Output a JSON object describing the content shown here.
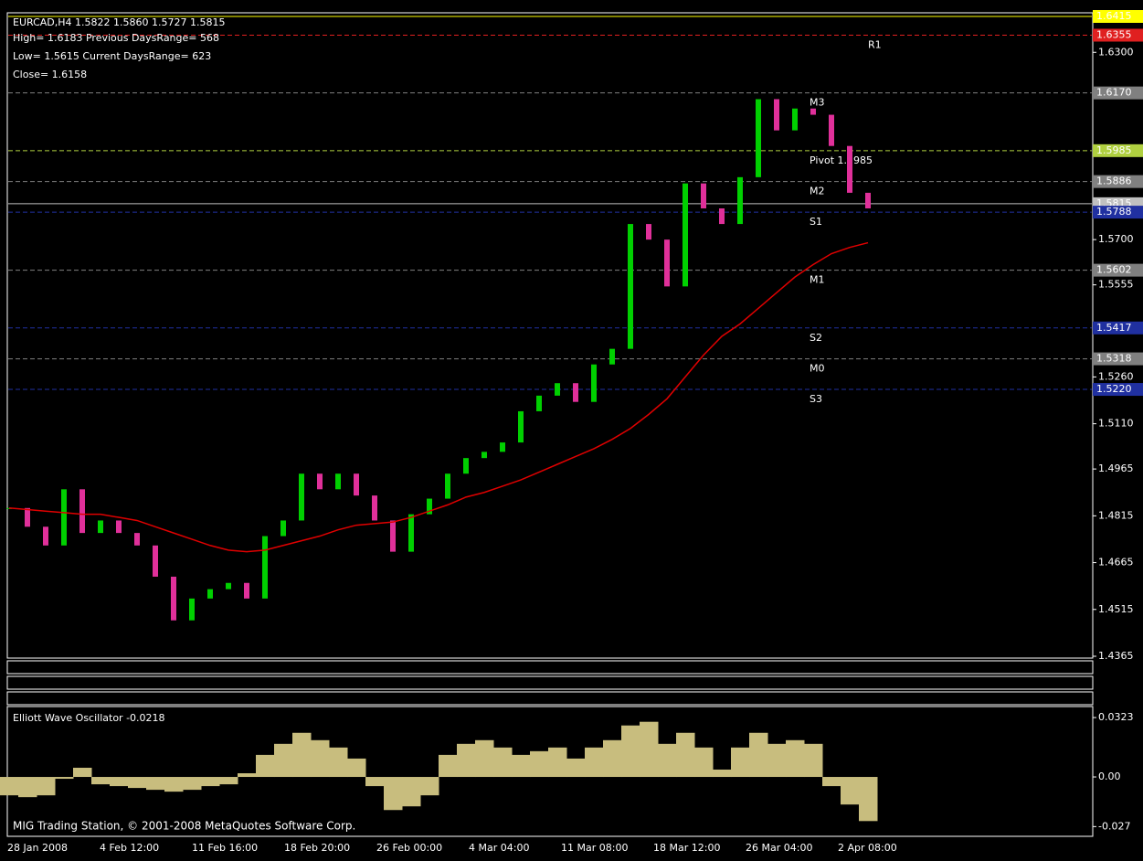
{
  "chart_data": [
    {
      "type": "candlestick",
      "header": [
        "EURCAD,H4  1.5822 1.5860 1.5727 1.5815",
        "High= 1.6183 Previous DaysRange= 568",
        "Low= 1.5615 Current DaysRange= 623",
        "Close= 1.6158"
      ],
      "x_labels": [
        "28 Jan 2008",
        "4 Feb 12:00",
        "11 Feb 16:00",
        "18 Feb 20:00",
        "26 Feb 00:00",
        "4 Mar 04:00",
        "11 Mar 08:00",
        "18 Mar 12:00",
        "26 Mar 04:00",
        "2 Apr 08:00"
      ],
      "values": [
        1.484,
        1.478,
        1.472,
        1.49,
        1.476,
        1.48,
        1.476,
        1.472,
        1.462,
        1.448,
        1.455,
        1.458,
        1.46,
        1.455,
        1.475,
        1.48,
        1.495,
        1.49,
        1.495,
        1.488,
        1.48,
        1.47,
        1.482,
        1.487,
        1.495,
        1.5,
        1.502,
        1.505,
        1.515,
        1.52,
        1.524,
        1.518,
        1.53,
        1.535,
        1.575,
        1.57,
        1.555,
        1.588,
        1.58,
        1.575,
        1.59,
        1.615,
        1.605,
        1.612,
        1.61,
        1.6,
        1.585,
        1.58
      ],
      "up_color": "#00d000",
      "down_color": "#e0309a",
      "ma_values": [
        1.484,
        1.4835,
        1.483,
        1.4825,
        1.482,
        1.482,
        1.481,
        1.48,
        1.478,
        1.476,
        1.474,
        1.472,
        1.4705,
        1.47,
        1.4705,
        1.472,
        1.4735,
        1.475,
        1.477,
        1.4785,
        1.479,
        1.4795,
        1.481,
        1.483,
        1.485,
        1.4875,
        1.489,
        1.491,
        1.493,
        1.4955,
        1.498,
        1.5005,
        1.503,
        1.506,
        1.5095,
        1.514,
        1.519,
        1.526,
        1.533,
        1.539,
        1.543,
        1.548,
        1.553,
        1.558,
        1.562,
        1.5655,
        1.5675,
        1.569
      ],
      "ma_color": "#e00000",
      "ylim": [
        1.4365,
        1.6415
      ],
      "yticks": [
        {
          "value": 1.63,
          "label": "1.6300"
        },
        {
          "value": 1.57,
          "label": "1.5700"
        },
        {
          "value": 1.5555,
          "label": "1.5555"
        },
        {
          "value": 1.526,
          "label": "1.5260"
        },
        {
          "value": 1.511,
          "label": "1.5110"
        },
        {
          "value": 1.4965,
          "label": "1.4965"
        },
        {
          "value": 1.4815,
          "label": "1.4815"
        },
        {
          "value": 1.4665,
          "label": "1.4665"
        },
        {
          "value": 1.4515,
          "label": "1.4515"
        },
        {
          "value": 1.4365,
          "label": "1.4365"
        }
      ],
      "levels": [
        {
          "value": 1.6415,
          "label": "1.6415",
          "color": "#ffff00"
        },
        {
          "value": 1.6355,
          "label": "1.6355",
          "color": "#e02020",
          "name": "R1"
        },
        {
          "value": 1.617,
          "label": "1.6170",
          "color": "#808080",
          "name": "M3"
        },
        {
          "value": 1.5985,
          "label": "1.5985",
          "color": "#b0d040",
          "name": "Pivot 1.5985"
        },
        {
          "value": 1.5886,
          "label": "1.5886",
          "color": "#808080",
          "name": "M2"
        },
        {
          "value": 1.5815,
          "label": "1.5815",
          "color": "#c0c0c0"
        },
        {
          "value": 1.5788,
          "label": "1.5788",
          "color": "#2030a0",
          "name": "S1"
        },
        {
          "value": 1.5602,
          "label": "1.5602",
          "color": "#808080",
          "name": "M1"
        },
        {
          "value": 1.5417,
          "label": "1.5417",
          "color": "#2030a0",
          "name": "S2"
        },
        {
          "value": 1.5318,
          "label": "1.5318",
          "color": "#808080",
          "name": "M0"
        },
        {
          "value": 1.522,
          "label": "1.5220",
          "color": "#2030a0",
          "name": "S3"
        }
      ]
    },
    {
      "type": "area",
      "title": "Elliott Wave Oscillator -0.0218",
      "color": "#c8bd7e",
      "values": [
        -0.01,
        -0.011,
        -0.01,
        -0.001,
        0.005,
        -0.004,
        -0.005,
        -0.006,
        -0.007,
        -0.008,
        -0.007,
        -0.005,
        -0.004,
        0.002,
        0.012,
        0.018,
        0.024,
        0.02,
        0.016,
        0.01,
        -0.005,
        -0.018,
        -0.016,
        -0.01,
        0.012,
        0.018,
        0.02,
        0.016,
        0.012,
        0.014,
        0.016,
        0.01,
        0.016,
        0.02,
        0.028,
        0.03,
        0.018,
        0.024,
        0.016,
        0.004,
        0.016,
        0.024,
        0.018,
        0.02,
        0.018,
        -0.005,
        -0.015,
        -0.024
      ],
      "ylim": [
        -0.0323,
        0.0383
      ],
      "yticks": [
        0.0323,
        {
          "value": 0,
          "label": "0.00"
        },
        -0.027
      ]
    }
  ],
  "footer": "MIG Trading Station, © 2001-2008 MetaQuotes Software Corp."
}
